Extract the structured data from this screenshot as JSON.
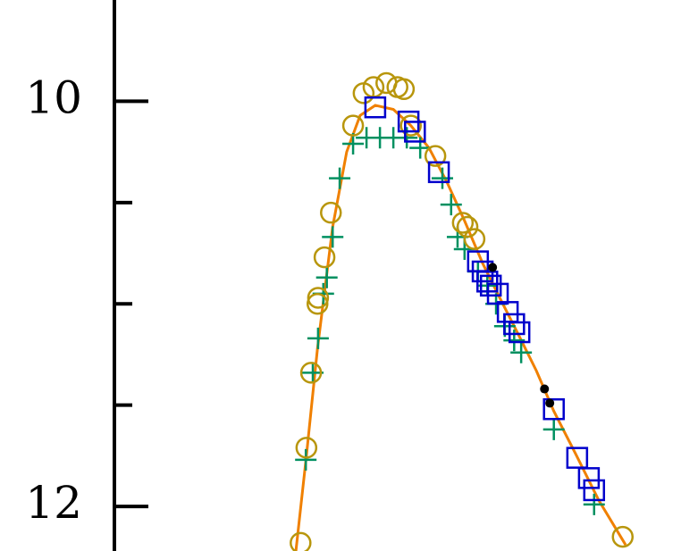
{
  "chart_data": {
    "type": "scatter",
    "xlim": [
      0,
      100
    ],
    "ylim": [
      9.5,
      12.22
    ],
    "y_inverted": true,
    "yticks": [
      10,
      12
    ],
    "yminor_ticks": [
      10.5,
      11,
      11.5
    ],
    "series": [
      {
        "type": "line",
        "color": "#f08000",
        "x": [
          31.1,
          32.9,
          34.8,
          37.4,
          39.8,
          42.1,
          44.7,
          47.8,
          50.8,
          53.9,
          57.0,
          60.0,
          63.1,
          66.2,
          69.2,
          72.3,
          75.3,
          79.2,
          83.0,
          87.6
        ],
        "values": [
          12.22,
          11.75,
          11.22,
          10.62,
          10.25,
          10.07,
          10.02,
          10.04,
          10.12,
          10.23,
          10.4,
          10.59,
          10.8,
          10.98,
          11.15,
          11.33,
          11.53,
          11.75,
          11.97,
          12.19
        ]
      },
      {
        "type": "scatter",
        "marker": "plus",
        "color": "#009060",
        "x": [
          32.8,
          34.0,
          34.9,
          35.8,
          36.4,
          37.4,
          38.6,
          40.9,
          43.2,
          45.5,
          47.8,
          50.1,
          52.4,
          56.2,
          57.7,
          58.8,
          60.0,
          62.3,
          63.9,
          65.4,
          66.9,
          68.5,
          69.7,
          75.3,
          82.2
        ],
        "values": [
          11.77,
          11.34,
          11.17,
          10.95,
          10.87,
          10.67,
          10.38,
          10.21,
          10.18,
          10.18,
          10.18,
          10.18,
          10.23,
          10.38,
          10.51,
          10.67,
          10.73,
          10.84,
          10.91,
          11.0,
          11.11,
          11.18,
          11.24,
          11.62,
          11.99
        ]
      },
      {
        "type": "scatter",
        "marker": "circle",
        "color": "#b8960c",
        "x": [
          31.9,
          32.9,
          33.7,
          34.8,
          34.9,
          36.0,
          37.1,
          40.9,
          42.7,
          44.4,
          46.6,
          48.5,
          49.6,
          50.8,
          55.0,
          59.7,
          60.5,
          61.7,
          87.1
        ],
        "values": [
          12.18,
          11.71,
          11.34,
          11.0,
          10.97,
          10.77,
          10.55,
          10.12,
          9.96,
          9.93,
          9.91,
          9.93,
          9.94,
          10.12,
          10.27,
          10.6,
          10.62,
          10.68,
          12.15
        ]
      },
      {
        "type": "scatter",
        "marker": "square",
        "color": "#0000cc",
        "x": [
          44.7,
          50.4,
          51.5,
          55.6,
          62.3,
          63.1,
          63.9,
          64.5,
          65.7,
          67.4,
          68.5,
          69.4,
          75.3,
          79.3,
          81.3,
          82.2
        ],
        "values": [
          10.03,
          10.1,
          10.15,
          10.35,
          10.79,
          10.84,
          10.89,
          10.91,
          10.95,
          11.04,
          11.1,
          11.14,
          11.52,
          11.76,
          11.86,
          11.92
        ]
      },
      {
        "type": "scatter",
        "marker": "dot",
        "color": "#000000",
        "x": [
          64.8,
          73.7,
          74.6
        ],
        "values": [
          10.82,
          11.42,
          11.49
        ]
      }
    ]
  }
}
